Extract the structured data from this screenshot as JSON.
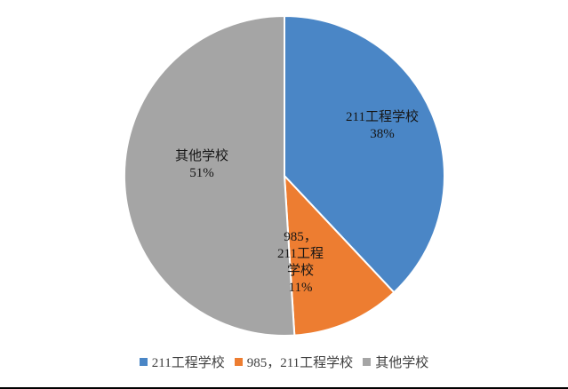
{
  "chart_data": {
    "type": "pie",
    "title": "",
    "start_angle_deg": 0,
    "direction": "clockwise",
    "legend_position": "bottom",
    "slices": [
      {
        "name": "211工程学校",
        "value": 38,
        "percent_label": "38%",
        "color": "#4A86C6",
        "label_lines": [
          "211工程学校",
          "38%"
        ]
      },
      {
        "name": "985，211工程学校",
        "value": 11,
        "percent_label": "11%",
        "color": "#ED7D31",
        "label_lines": [
          "985，",
          "211工程",
          "学校",
          "11%"
        ]
      },
      {
        "name": "其他学校",
        "value": 51,
        "percent_label": "51%",
        "color": "#A5A5A5",
        "label_lines": [
          "其他学校",
          "51%"
        ]
      }
    ]
  },
  "colors": {
    "label_text": "#161616",
    "legend_text": "#3f3f3f",
    "slice_separator": "#ffffff",
    "page_border": "#000000"
  }
}
